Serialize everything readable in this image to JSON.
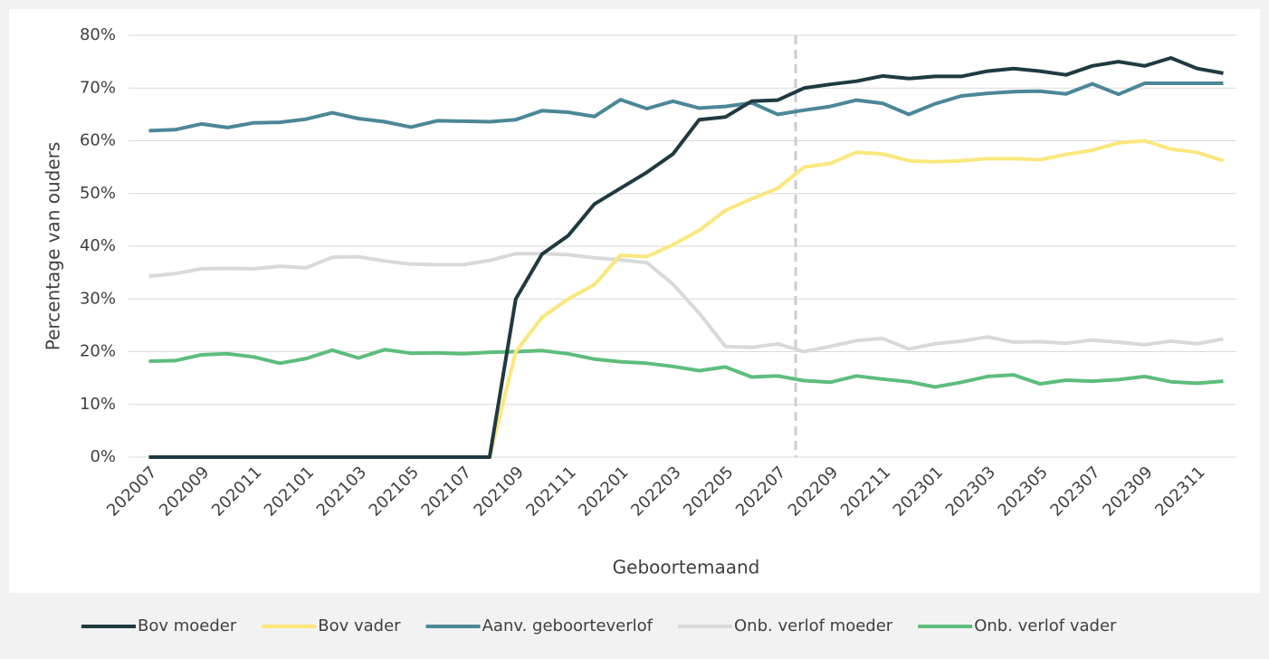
{
  "chart_data": {
    "type": "line",
    "x_label": "Geboortemaand",
    "y_label": "Percentage van ouders",
    "categories": [
      "202007",
      null,
      "202009",
      null,
      "202011",
      null,
      "202101",
      null,
      "202103",
      null,
      "202105",
      null,
      "202107",
      null,
      "202109",
      null,
      "202111",
      null,
      "202201",
      null,
      "202203",
      null,
      "202205",
      null,
      "202207",
      null,
      "202209",
      null,
      "202211",
      null,
      "202301",
      null,
      "202303",
      null,
      "202305",
      null,
      "202307",
      null,
      "202309",
      null,
      "202311",
      null
    ],
    "ylim": [
      0,
      80
    ],
    "yticks": [
      {
        "value": 0,
        "label": "0%"
      },
      {
        "value": 10,
        "label": "10%"
      },
      {
        "value": 20,
        "label": "20%"
      },
      {
        "value": 30,
        "label": "30%"
      },
      {
        "value": 40,
        "label": "40%"
      },
      {
        "value": 50,
        "label": "50%"
      },
      {
        "value": 60,
        "label": "60%"
      },
      {
        "value": 70,
        "label": "70%"
      },
      {
        "value": 80,
        "label": "80%"
      }
    ],
    "grid": true,
    "legend": "bottom",
    "series": [
      {
        "name": "Bov moeder",
        "color": "#1f3a40",
        "values": [
          0,
          0,
          0,
          0,
          0,
          0,
          0,
          0,
          0,
          0,
          0,
          0,
          0,
          0,
          30,
          38.5,
          42,
          48,
          51,
          54,
          57.5,
          64,
          64.5,
          67.5,
          67.7,
          70,
          70.7,
          71.3,
          72.3,
          71.8,
          72.2,
          72.2,
          73.2,
          73.7,
          73.2,
          72.5,
          74.2,
          75,
          74.2,
          75.7,
          73.7,
          72.8
        ]
      },
      {
        "name": "Bov vader",
        "color": "#fbe77c",
        "values": [
          0,
          0,
          0,
          0,
          0,
          0,
          0,
          0,
          0,
          0,
          0,
          0,
          0,
          0,
          20,
          26.5,
          30,
          32.7,
          38.3,
          38,
          40.3,
          43,
          46.8,
          49,
          51,
          55,
          55.7,
          57.8,
          57.5,
          56.2,
          56,
          56.2,
          56.6,
          56.6,
          56.4,
          57.4,
          58.2,
          59.6,
          60,
          58.4,
          57.8,
          56.2
        ]
      },
      {
        "name": "Aanv. geboorteverlof",
        "color": "#4b8797",
        "values": [
          61.9,
          62.1,
          63.2,
          62.5,
          63.4,
          63.5,
          64.1,
          65.3,
          64.2,
          63.6,
          62.6,
          63.8,
          63.7,
          63.6,
          64,
          65.7,
          65.4,
          64.6,
          67.8,
          66.1,
          67.5,
          66.2,
          66.5,
          67.2,
          65,
          65.8,
          66.5,
          67.7,
          67.1,
          65,
          67,
          68.5,
          69,
          69.3,
          69.4,
          68.9,
          70.8,
          68.8,
          70.9,
          70.9,
          70.9,
          70.9
        ]
      },
      {
        "name": "Onb. verlof moeder",
        "color": "#d9d9d9",
        "values": [
          34.3,
          34.8,
          35.7,
          35.8,
          35.7,
          36.2,
          35.9,
          37.9,
          38,
          37.2,
          36.6,
          36.5,
          36.5,
          37.3,
          38.6,
          38.6,
          38.4,
          37.8,
          37.4,
          36.9,
          32.8,
          27.3,
          21,
          20.8,
          21.5,
          20,
          21,
          22.1,
          22.5,
          20.5,
          21.5,
          22,
          22.8,
          21.8,
          21.9,
          21.6,
          22.2,
          21.8,
          21.3,
          22,
          21.5,
          22.4
        ]
      },
      {
        "name": "Onb. verlof vader",
        "color": "#5dbd7c",
        "values": [
          18.2,
          18.3,
          19.4,
          19.6,
          19,
          17.8,
          18.7,
          20.3,
          18.8,
          20.4,
          19.7,
          19.8,
          19.6,
          19.9,
          20,
          20.2,
          19.6,
          18.6,
          18.1,
          17.8,
          17.2,
          16.4,
          17.1,
          15.2,
          15.4,
          14.5,
          14.2,
          15.4,
          14.8,
          14.3,
          13.3,
          14.2,
          15.3,
          15.6,
          13.9,
          14.6,
          14.4,
          14.7,
          15.3,
          14.3,
          14,
          14.4
        ]
      }
    ]
  }
}
